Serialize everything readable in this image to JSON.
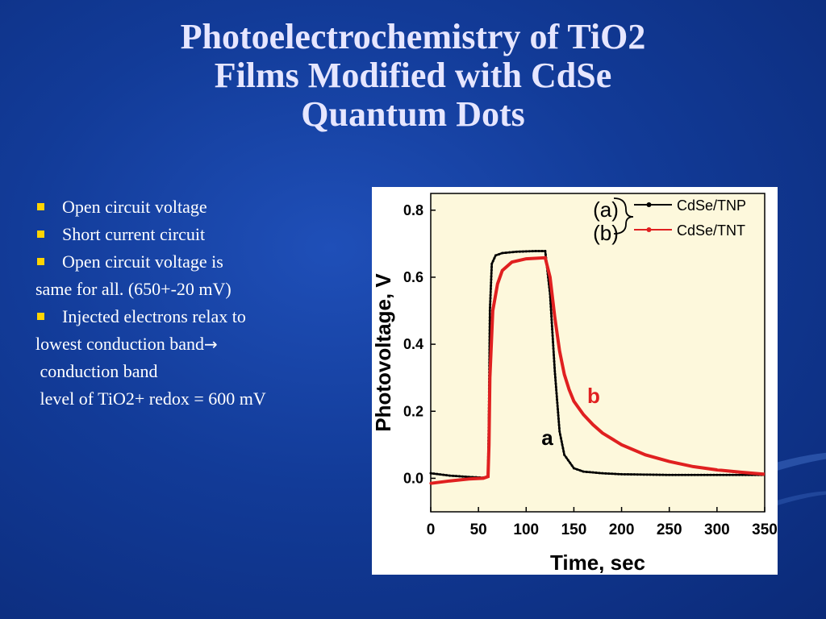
{
  "slide": {
    "title_lines": [
      "Photoelectrochemistry of TiO2",
      "Films Modified with CdSe",
      "Quantum Dots"
    ],
    "bullets": [
      "Open circuit voltage",
      "Short current circuit",
      "Open circuit voltage is",
      "same for all. (650+-20 mV)",
      "Injected electrons relax to",
      "lowest conduction band",
      "→",
      " conduction band",
      " level of TiO2+ redox = 600 mV"
    ],
    "colors": {
      "background": "#123b98",
      "bullet": "#ffd400",
      "title": "#e6e6ff"
    }
  },
  "chart_data": {
    "type": "line",
    "xlabel": "Time, sec",
    "ylabel": "Photovoltage, V",
    "xlim": [
      0,
      350
    ],
    "ylim": [
      -0.1,
      0.85
    ],
    "xticks": [
      "0",
      "50",
      "100",
      "150",
      "200",
      "250",
      "300",
      "350"
    ],
    "yticks": [
      "0.0",
      "0.2",
      "0.4",
      "0.6",
      "0.8"
    ],
    "plot_background": "#fdf8dc",
    "legend": {
      "placement": "top-right",
      "brace_labels": [
        "(a)",
        "(b)"
      ]
    },
    "annotations": [
      "a",
      "b"
    ],
    "series": [
      {
        "name": "CdSe/TNP",
        "color": "#000000",
        "x": [
          0,
          20,
          40,
          55,
          60,
          61,
          62,
          64,
          68,
          75,
          90,
          110,
          120,
          125,
          130,
          135,
          140,
          150,
          160,
          180,
          200,
          250,
          300,
          350
        ],
        "y": [
          0.015,
          0.008,
          0.004,
          0.002,
          0.005,
          0.2,
          0.5,
          0.64,
          0.665,
          0.672,
          0.676,
          0.678,
          0.678,
          0.55,
          0.32,
          0.14,
          0.07,
          0.03,
          0.02,
          0.015,
          0.012,
          0.01,
          0.01,
          0.01
        ]
      },
      {
        "name": "CdSe/TNT",
        "color": "#e02020",
        "x": [
          0,
          20,
          40,
          55,
          60,
          61,
          62,
          65,
          70,
          75,
          85,
          100,
          120,
          125,
          130,
          135,
          140,
          145,
          150,
          160,
          170,
          180,
          200,
          225,
          250,
          275,
          300,
          325,
          350
        ],
        "y": [
          -0.015,
          -0.008,
          -0.002,
          0.0,
          0.005,
          0.1,
          0.3,
          0.5,
          0.58,
          0.62,
          0.645,
          0.655,
          0.658,
          0.6,
          0.48,
          0.38,
          0.31,
          0.265,
          0.23,
          0.19,
          0.16,
          0.135,
          0.1,
          0.07,
          0.05,
          0.035,
          0.025,
          0.018,
          0.012
        ]
      }
    ]
  }
}
